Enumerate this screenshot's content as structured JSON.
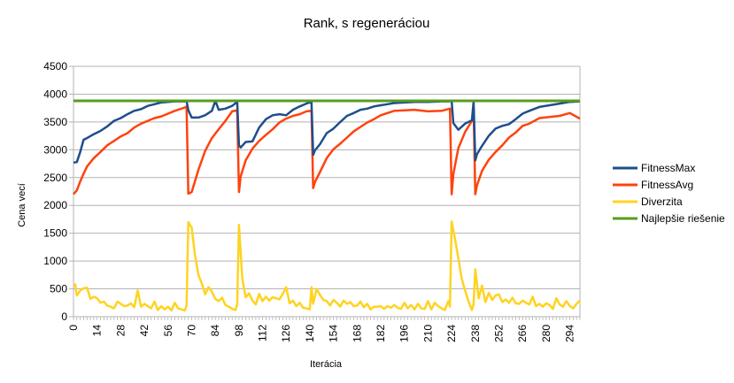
{
  "chart_data": {
    "type": "line",
    "title": "Rank, s regeneráciou",
    "xlabel": "Iterácia",
    "ylabel": "Cena vecí",
    "ylim": [
      0,
      4500
    ],
    "xlim": [
      0,
      300
    ],
    "yticks": [
      0,
      500,
      1000,
      1500,
      2000,
      2500,
      3000,
      3500,
      4000,
      4500
    ],
    "xticks": [
      0,
      14,
      28,
      42,
      56,
      70,
      84,
      98,
      112,
      126,
      140,
      154,
      168,
      182,
      196,
      210,
      224,
      238,
      252,
      266,
      280,
      294
    ],
    "grid": "horizontal",
    "legend_position": "right",
    "regeneration_iterations": [
      67,
      98,
      142,
      224,
      238
    ],
    "series": [
      {
        "name": "FitnessMax",
        "color": "#1f4e8c",
        "x": [
          0,
          2,
          4,
          6,
          8,
          12,
          16,
          20,
          24,
          28,
          32,
          36,
          40,
          44,
          48,
          52,
          56,
          60,
          64,
          66,
          67,
          68,
          70,
          74,
          78,
          82,
          84,
          86,
          90,
          94,
          97,
          98,
          99,
          102,
          106,
          110,
          114,
          118,
          122,
          126,
          130,
          134,
          138,
          141,
          142,
          143,
          146,
          150,
          154,
          158,
          162,
          166,
          170,
          174,
          178,
          182,
          186,
          190,
          196,
          202,
          210,
          218,
          223,
          224,
          225,
          228,
          232,
          236,
          237,
          238,
          239,
          242,
          246,
          250,
          254,
          258,
          262,
          266,
          270,
          276,
          282,
          288,
          294,
          300
        ],
        "values": [
          2770,
          2780,
          2960,
          3180,
          3210,
          3280,
          3340,
          3420,
          3520,
          3570,
          3640,
          3700,
          3730,
          3790,
          3820,
          3850,
          3860,
          3870,
          3870,
          3870,
          3880,
          3710,
          3580,
          3580,
          3620,
          3700,
          3880,
          3720,
          3740,
          3790,
          3860,
          3080,
          3040,
          3140,
          3150,
          3400,
          3550,
          3620,
          3640,
          3620,
          3720,
          3780,
          3830,
          3860,
          2910,
          2990,
          3100,
          3300,
          3380,
          3500,
          3610,
          3660,
          3720,
          3740,
          3780,
          3800,
          3820,
          3840,
          3850,
          3860,
          3860,
          3870,
          3870,
          3880,
          3480,
          3360,
          3470,
          3530,
          3870,
          2810,
          2920,
          3070,
          3250,
          3380,
          3430,
          3460,
          3550,
          3650,
          3700,
          3770,
          3800,
          3830,
          3860,
          3870
        ]
      },
      {
        "name": "FitnessAvg",
        "color": "#ff420e",
        "x": [
          0,
          2,
          4,
          6,
          8,
          12,
          16,
          20,
          24,
          28,
          32,
          36,
          40,
          44,
          48,
          52,
          56,
          60,
          64,
          66,
          67,
          68,
          70,
          74,
          78,
          82,
          86,
          90,
          94,
          97,
          98,
          99,
          102,
          106,
          110,
          114,
          118,
          122,
          126,
          130,
          134,
          138,
          141,
          142,
          143,
          146,
          150,
          154,
          158,
          162,
          166,
          170,
          174,
          178,
          182,
          186,
          190,
          196,
          202,
          210,
          218,
          223,
          224,
          225,
          228,
          232,
          236,
          237,
          238,
          239,
          242,
          246,
          250,
          254,
          258,
          262,
          266,
          270,
          276,
          282,
          288,
          294,
          300
        ],
        "values": [
          2200,
          2270,
          2430,
          2570,
          2700,
          2850,
          2960,
          3080,
          3160,
          3240,
          3300,
          3400,
          3470,
          3520,
          3570,
          3600,
          3650,
          3700,
          3740,
          3760,
          3780,
          2210,
          2240,
          2640,
          2980,
          3210,
          3370,
          3520,
          3690,
          3710,
          2240,
          2520,
          2810,
          3020,
          3160,
          3270,
          3370,
          3490,
          3560,
          3610,
          3640,
          3690,
          3700,
          2310,
          2420,
          2600,
          2850,
          3010,
          3110,
          3220,
          3330,
          3410,
          3490,
          3550,
          3620,
          3660,
          3700,
          3710,
          3720,
          3690,
          3700,
          3740,
          2200,
          2560,
          3030,
          3320,
          3520,
          3740,
          2200,
          2360,
          2620,
          2820,
          2960,
          3080,
          3220,
          3310,
          3430,
          3470,
          3570,
          3590,
          3610,
          3660,
          3560
        ]
      },
      {
        "name": "Diverzita",
        "color": "#ffd320",
        "x": [
          0,
          1,
          2,
          4,
          6,
          8,
          10,
          12,
          14,
          16,
          18,
          20,
          22,
          24,
          26,
          28,
          30,
          32,
          34,
          36,
          38,
          40,
          42,
          44,
          46,
          48,
          50,
          52,
          54,
          56,
          58,
          60,
          62,
          64,
          66,
          67,
          68,
          70,
          72,
          74,
          76,
          78,
          80,
          82,
          84,
          86,
          88,
          90,
          92,
          94,
          96,
          97,
          98,
          100,
          102,
          104,
          106,
          108,
          110,
          112,
          114,
          116,
          118,
          120,
          122,
          124,
          126,
          128,
          130,
          132,
          134,
          136,
          138,
          140,
          141,
          142,
          144,
          146,
          148,
          150,
          152,
          154,
          156,
          158,
          160,
          162,
          164,
          166,
          168,
          170,
          172,
          174,
          176,
          178,
          180,
          182,
          184,
          186,
          188,
          190,
          192,
          194,
          196,
          198,
          200,
          202,
          204,
          206,
          208,
          210,
          212,
          214,
          216,
          218,
          220,
          222,
          223,
          224,
          226,
          228,
          230,
          232,
          234,
          236,
          237,
          238,
          240,
          242,
          244,
          246,
          248,
          250,
          252,
          254,
          256,
          258,
          260,
          262,
          264,
          266,
          268,
          270,
          272,
          274,
          276,
          278,
          280,
          282,
          284,
          286,
          288,
          290,
          292,
          294,
          296,
          298,
          300
        ],
        "values": [
          560,
          580,
          380,
          470,
          510,
          520,
          320,
          360,
          330,
          250,
          270,
          200,
          180,
          150,
          270,
          230,
          190,
          200,
          240,
          170,
          470,
          180,
          230,
          190,
          150,
          270,
          120,
          190,
          130,
          180,
          110,
          250,
          150,
          130,
          110,
          200,
          1700,
          1600,
          1100,
          750,
          600,
          400,
          530,
          450,
          320,
          280,
          340,
          210,
          180,
          140,
          120,
          230,
          1650,
          680,
          350,
          420,
          290,
          220,
          410,
          280,
          360,
          290,
          350,
          330,
          310,
          410,
          530,
          240,
          290,
          190,
          250,
          160,
          150,
          130,
          530,
          230,
          500,
          390,
          300,
          280,
          200,
          300,
          250,
          180,
          290,
          230,
          260,
          190,
          200,
          270,
          170,
          230,
          130,
          180,
          180,
          190,
          140,
          190,
          160,
          210,
          160,
          140,
          250,
          150,
          210,
          130,
          230,
          150,
          140,
          280,
          130,
          250,
          190,
          150,
          120,
          280,
          180,
          1710,
          1400,
          1050,
          680,
          470,
          270,
          120,
          230,
          850,
          330,
          560,
          260,
          430,
          300,
          380,
          400,
          260,
          310,
          250,
          340,
          240,
          230,
          290,
          250,
          220,
          360,
          190,
          230,
          180,
          240,
          210,
          140,
          330,
          220,
          180,
          280,
          190,
          150,
          230,
          290
        ]
      },
      {
        "name": "Najlepšie riešenie",
        "color": "#579d1c",
        "x": [
          0,
          300
        ],
        "values": [
          3880,
          3880
        ]
      }
    ]
  }
}
